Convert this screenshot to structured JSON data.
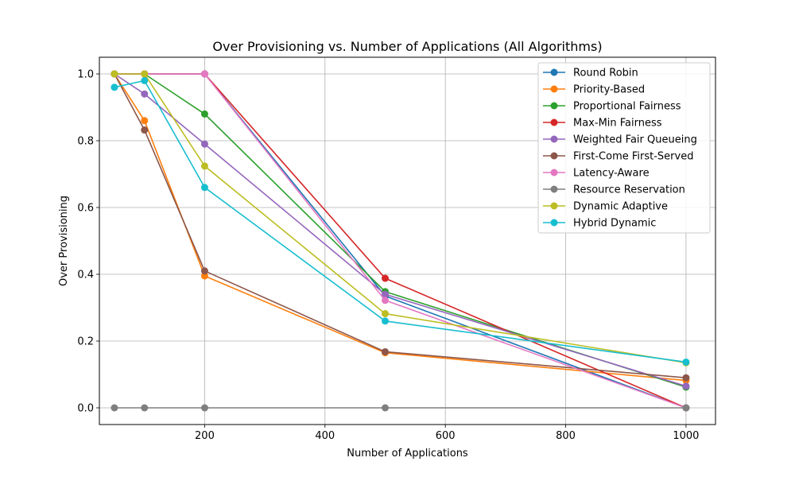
{
  "chart_data": {
    "type": "line",
    "title": "Over Provisioning vs. Number of Applications (All Algorithms)",
    "xlabel": "Number of Applications",
    "ylabel": "Over Provisioning",
    "xlim": [
      25,
      1049
    ],
    "ylim": [
      -0.05,
      1.05
    ],
    "xticks": [
      200,
      400,
      600,
      800,
      1000
    ],
    "yticks": [
      0.0,
      0.2,
      0.4,
      0.6,
      0.8,
      1.0
    ],
    "xtick_labels": [
      "200",
      "400",
      "600",
      "800",
      "1000"
    ],
    "ytick_labels": [
      "0.0",
      "0.2",
      "0.4",
      "0.6",
      "0.8",
      "1.0"
    ],
    "grid": true,
    "legend_position": "upper right",
    "x": [
      50,
      100,
      200,
      500,
      1000
    ],
    "series": [
      {
        "name": "Round Robin",
        "color": "#1f77b4",
        "values": [
          1.0,
          1.0,
          1.0,
          0.335,
          0.0
        ]
      },
      {
        "name": "Priority-Based",
        "color": "#ff7f0e",
        "values": [
          1.0,
          0.86,
          0.395,
          0.165,
          0.082
        ]
      },
      {
        "name": "Proportional Fairness",
        "color": "#2ca02c",
        "values": [
          1.0,
          1.0,
          0.88,
          0.348,
          0.062
        ]
      },
      {
        "name": "Max-Min Fairness",
        "color": "#d62728",
        "values": [
          1.0,
          1.0,
          1.0,
          0.388,
          0.0
        ]
      },
      {
        "name": "Weighted Fair Queueing",
        "color": "#9467bd",
        "values": [
          1.0,
          0.94,
          0.79,
          0.34,
          0.065
        ]
      },
      {
        "name": "First-Come First-Served",
        "color": "#8c564b",
        "values": [
          1.0,
          0.832,
          0.41,
          0.168,
          0.09
        ]
      },
      {
        "name": "Latency-Aware",
        "color": "#e377c2",
        "values": [
          1.0,
          1.0,
          1.0,
          0.322,
          0.0
        ]
      },
      {
        "name": "Resource Reservation",
        "color": "#7f7f7f",
        "values": [
          0.0,
          0.0,
          0.0,
          0.0,
          0.0
        ]
      },
      {
        "name": "Dynamic Adaptive",
        "color": "#bcbd22",
        "values": [
          1.0,
          1.0,
          0.724,
          0.282,
          0.135
        ]
      },
      {
        "name": "Hybrid Dynamic",
        "color": "#17becf",
        "values": [
          0.96,
          0.98,
          0.66,
          0.26,
          0.137
        ]
      }
    ]
  }
}
